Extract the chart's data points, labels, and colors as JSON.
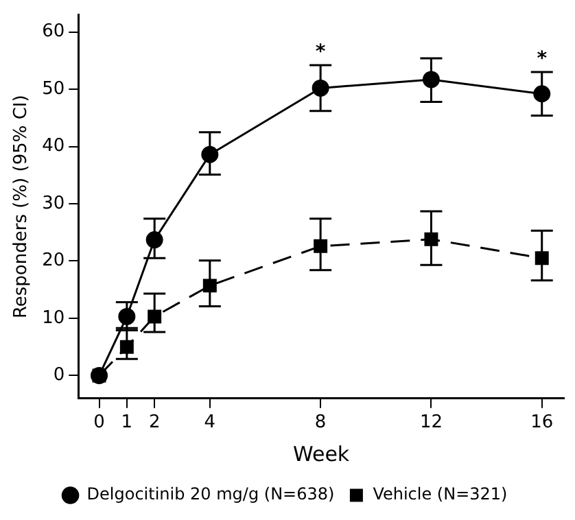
{
  "chart_data": {
    "type": "line",
    "xlabel": "Week",
    "ylabel": "Responders (%) (95% CI)",
    "x": [
      0,
      1,
      2,
      4,
      8,
      12,
      16
    ],
    "xlim": [
      -0.75,
      16.8
    ],
    "xticks": [
      0,
      1,
      2,
      4,
      8,
      12,
      16
    ],
    "ylim": [
      -4,
      63
    ],
    "yticks": [
      0,
      10,
      20,
      30,
      40,
      50,
      60
    ],
    "grid": false,
    "legend": "bottom",
    "series": [
      {
        "name": "Delgocitinib 20 mg/g (N=638)",
        "color": "#000000",
        "marker": "circle",
        "line_style": "solid",
        "values": [
          0,
          10.3,
          23.7,
          38.6,
          50.2,
          51.7,
          49.2
        ],
        "errors": [
          null,
          [
            7.9,
            12.8
          ],
          [
            20.5,
            27.4
          ],
          [
            35.1,
            42.5
          ],
          [
            46.2,
            54.2
          ],
          [
            47.8,
            55.4
          ],
          [
            45.4,
            53
          ]
        ]
      },
      {
        "name": "Vehicle (N=321)",
        "color": "#000000",
        "marker": "square",
        "line_style": "dashed",
        "values": [
          0,
          5,
          10.3,
          15.7,
          22.6,
          23.8,
          20.5
        ],
        "errors": [
          null,
          [
            2.9,
            8.3
          ],
          [
            7.6,
            14.3
          ],
          [
            12.1,
            20.1
          ],
          [
            18.4,
            27.4
          ],
          [
            19.3,
            28.7
          ],
          [
            16.6,
            25.3
          ]
        ]
      }
    ],
    "annotations": [
      {
        "text": "*",
        "x": 8,
        "y": 54.2
      },
      {
        "text": "*",
        "x": 16,
        "y": 53
      }
    ]
  }
}
